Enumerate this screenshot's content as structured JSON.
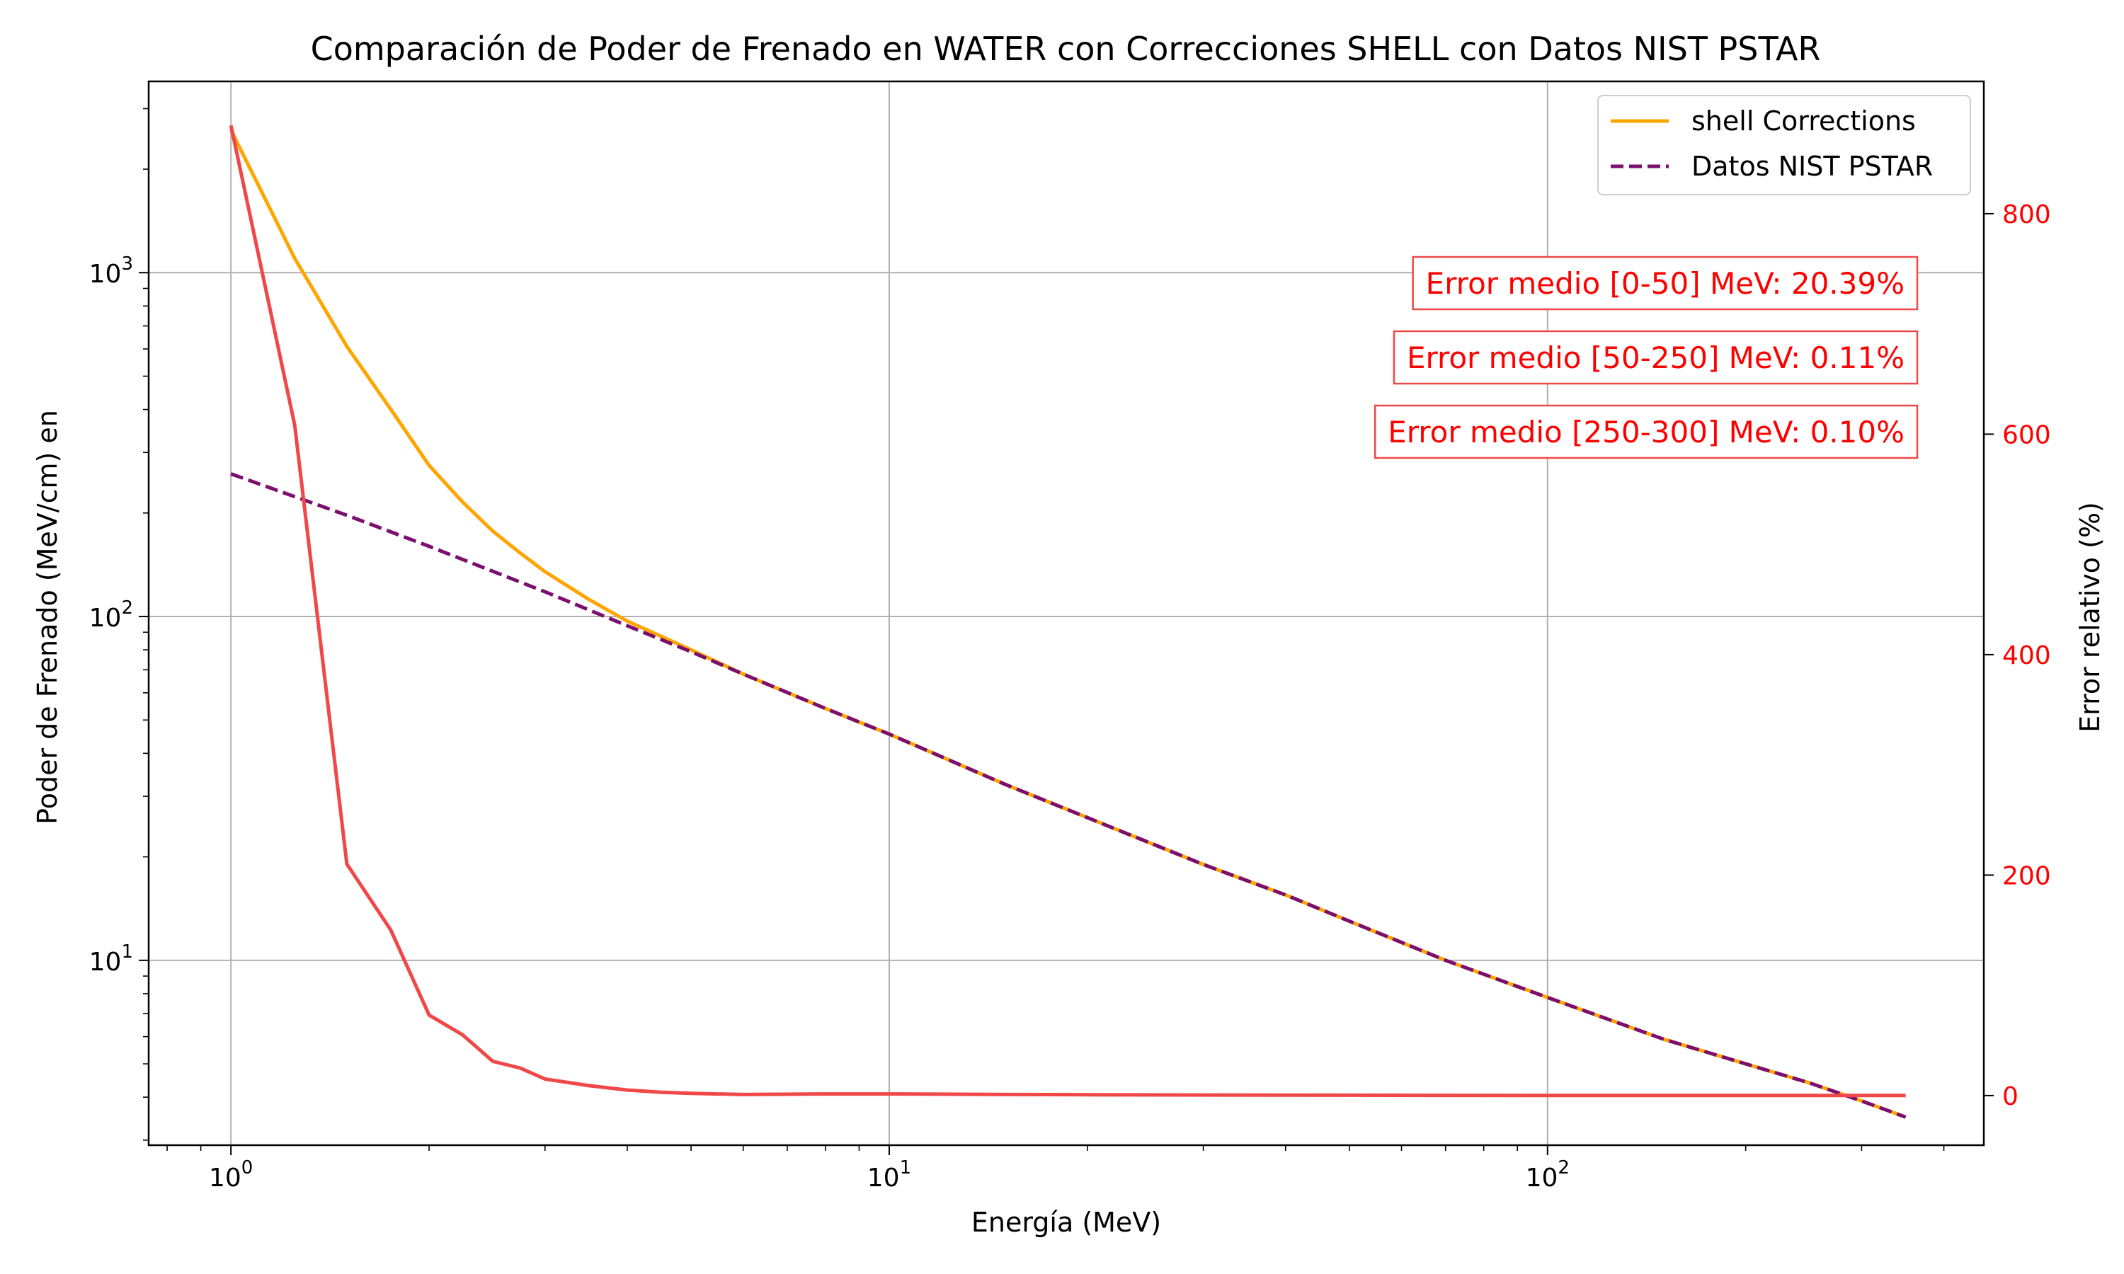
{
  "chart_data": {
    "type": "line",
    "title": "Comparación de Poder de Frenado en WATER con Correcciones SHELL con Datos NIST PSTAR",
    "xlabel": "Energía (MeV)",
    "ylabel": "Poder de Frenado (MeV/cm) en",
    "y2label": "Error relativo (%)",
    "xscale": "log",
    "yscale": "log",
    "xlim": [
      0.75,
      460
    ],
    "ylim": [
      2.9,
      3600
    ],
    "y2lim": [
      -45,
      920
    ],
    "grid": true,
    "legend_position": "upper right",
    "x_ticks": [
      {
        "value": 1,
        "base": "10",
        "exp": "0"
      },
      {
        "value": 10,
        "base": "10",
        "exp": "1"
      },
      {
        "value": 100,
        "base": "10",
        "exp": "2"
      }
    ],
    "y_ticks": [
      {
        "value": 10,
        "base": "10",
        "exp": "1"
      },
      {
        "value": 100,
        "base": "10",
        "exp": "2"
      },
      {
        "value": 1000,
        "base": "10",
        "exp": "3"
      }
    ],
    "y2_ticks": [
      0,
      200,
      400,
      600,
      800
    ],
    "series": [
      {
        "name": "shell Corrections",
        "axis": "left",
        "color": "#ffa500",
        "dash": "solid",
        "x": [
          1,
          1.25,
          1.5,
          1.75,
          2,
          2.25,
          2.5,
          2.75,
          3,
          3.5,
          4,
          5,
          6,
          8,
          10,
          15,
          20,
          30,
          40,
          50,
          70,
          100,
          150,
          200,
          250,
          300,
          350
        ],
        "y": [
          2600,
          1100,
          610,
          400,
          275,
          215,
          177,
          153,
          135,
          112,
          97,
          80,
          68,
          54,
          45.5,
          32.5,
          26,
          19,
          15.5,
          13,
          10,
          7.8,
          5.9,
          5.0,
          4.4,
          3.9,
          3.5
        ]
      },
      {
        "name": "Datos NIST PSTAR",
        "axis": "left",
        "color": "#7b0f6e",
        "dash": "dashed",
        "x": [
          1,
          1.5,
          2,
          3,
          4,
          5,
          6,
          8,
          10,
          15,
          20,
          30,
          40,
          50,
          70,
          100,
          150,
          200,
          250,
          300,
          350
        ],
        "y": [
          260,
          197,
          160,
          118,
          94,
          79,
          68,
          54,
          45.5,
          32.5,
          26,
          19,
          15.5,
          13,
          10,
          7.8,
          5.9,
          5.0,
          4.4,
          3.9,
          3.5
        ]
      },
      {
        "name": "",
        "axis": "right",
        "color": "#f04848",
        "dash": "solid",
        "x": [
          1,
          1.25,
          1.5,
          1.75,
          2,
          2.25,
          2.5,
          2.75,
          3,
          3.5,
          4,
          4.5,
          5,
          6,
          8,
          10,
          15,
          20,
          30,
          50,
          70,
          100,
          150,
          200,
          250,
          300,
          350
        ],
        "y": [
          880,
          608,
          210,
          150,
          73,
          55,
          31,
          25,
          15,
          9,
          5,
          3,
          2,
          1,
          1.5,
          1.5,
          1,
          0.8,
          0.5,
          0.3,
          0.2,
          0.1,
          0.1,
          0.1,
          0.1,
          0.1,
          0.1
        ]
      }
    ],
    "annotations": [
      "Error medio [0-50] MeV: 20.39%",
      "Error medio [50-250] MeV: 0.11%",
      "Error medio [250-300] MeV: 0.10%"
    ]
  }
}
